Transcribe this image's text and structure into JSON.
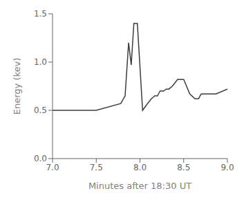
{
  "chart_data": {
    "type": "line",
    "x": [
      7.0,
      7.5,
      7.78,
      7.83,
      7.87,
      7.9,
      7.93,
      7.97,
      8.03,
      8.07,
      8.13,
      8.17,
      8.2,
      8.23,
      8.27,
      8.3,
      8.33,
      8.37,
      8.43,
      8.47,
      8.5,
      8.57,
      8.63,
      8.67,
      8.7,
      8.73,
      8.77,
      8.83,
      8.87,
      9.0
    ],
    "values": [
      0.5,
      0.5,
      0.57,
      0.65,
      1.2,
      0.97,
      1.4,
      1.4,
      0.5,
      0.55,
      0.62,
      0.65,
      0.65,
      0.7,
      0.7,
      0.72,
      0.72,
      0.75,
      0.82,
      0.82,
      0.82,
      0.67,
      0.62,
      0.62,
      0.67,
      0.67,
      0.67,
      0.67,
      0.67,
      0.72
    ],
    "xlabel": "Minutes after 18:30 UT",
    "ylabel": "Energy (kev)",
    "xlim": [
      7.0,
      9.0
    ],
    "ylim": [
      0,
      1.5
    ],
    "xticks": [
      {
        "value": 7.0,
        "label": "7.0"
      },
      7.5,
      {
        "value": 8.0,
        "label": "8.0"
      },
      8.5,
      {
        "value": 9.0,
        "label": "9.0"
      }
    ],
    "yticks": [
      {
        "value": 0,
        "label": "0.0"
      },
      0.5,
      {
        "value": 1.0,
        "label": "1.0"
      },
      1.5
    ],
    "color": "#3c3c3c",
    "grid": false
  }
}
